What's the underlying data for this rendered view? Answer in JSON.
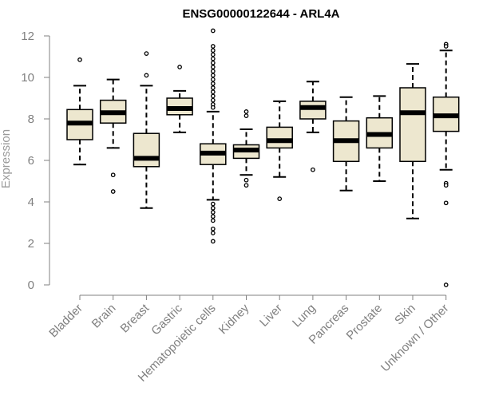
{
  "chart_data": {
    "type": "boxplot",
    "title": "ENSG00000122644 - ARL4A",
    "xlabel": "",
    "ylabel": "Expression",
    "ylim": [
      0,
      12
    ],
    "yticks": [
      0,
      2,
      4,
      6,
      8,
      10,
      12
    ],
    "grid": false,
    "colors": {
      "box_fill": "#ede7cf",
      "stroke": "#000000",
      "axis": "#808080"
    },
    "categories": [
      "Bladder",
      "Brain",
      "Breast",
      "Gastric",
      "Hematopoietic cells",
      "Kidney",
      "Liver",
      "Lung",
      "Pancreas",
      "Prostate",
      "Skin",
      "Unknown / Other"
    ],
    "boxes": [
      {
        "category": "Bladder",
        "whisker_low": 5.8,
        "q1": 7.0,
        "median": 7.8,
        "q3": 8.45,
        "whisker_high": 9.6,
        "outliers": [
          10.85
        ]
      },
      {
        "category": "Brain",
        "whisker_low": 6.6,
        "q1": 7.8,
        "median": 8.3,
        "q3": 8.9,
        "whisker_high": 9.9,
        "outliers": [
          5.3,
          4.5
        ]
      },
      {
        "category": "Breast",
        "whisker_low": 3.7,
        "q1": 5.7,
        "median": 6.1,
        "q3": 7.3,
        "whisker_high": 9.6,
        "outliers": [
          10.1,
          11.15
        ]
      },
      {
        "category": "Gastric",
        "whisker_low": 7.35,
        "q1": 8.2,
        "median": 8.5,
        "q3": 9.0,
        "whisker_high": 9.35,
        "outliers": [
          10.5
        ]
      },
      {
        "category": "Hematopoietic cells",
        "whisker_low": 4.1,
        "q1": 5.8,
        "median": 6.35,
        "q3": 6.8,
        "whisker_high": 8.35,
        "outliers": [
          12.25,
          11.5,
          11.3,
          11.1,
          10.9,
          10.7,
          10.5,
          10.3,
          10.1,
          9.9,
          9.7,
          9.5,
          9.3,
          9.1,
          8.9,
          8.7,
          8.55,
          3.9,
          3.7,
          3.5,
          3.3,
          3.1,
          2.7,
          2.5,
          2.1
        ]
      },
      {
        "category": "Kidney",
        "whisker_low": 5.3,
        "q1": 6.1,
        "median": 6.5,
        "q3": 6.75,
        "whisker_high": 7.5,
        "outliers": [
          8.35,
          8.15,
          5.05,
          4.8
        ]
      },
      {
        "category": "Liver",
        "whisker_low": 5.2,
        "q1": 6.6,
        "median": 6.95,
        "q3": 7.6,
        "whisker_high": 8.85,
        "outliers": [
          4.15
        ]
      },
      {
        "category": "Lung",
        "whisker_low": 7.35,
        "q1": 8.0,
        "median": 8.55,
        "q3": 8.85,
        "whisker_high": 9.8,
        "outliers": [
          5.55
        ]
      },
      {
        "category": "Pancreas",
        "whisker_low": 4.55,
        "q1": 5.95,
        "median": 6.95,
        "q3": 7.9,
        "whisker_high": 9.05,
        "outliers": []
      },
      {
        "category": "Prostate",
        "whisker_low": 5.0,
        "q1": 6.6,
        "median": 7.25,
        "q3": 8.05,
        "whisker_high": 9.1,
        "outliers": []
      },
      {
        "category": "Skin",
        "whisker_low": 3.2,
        "q1": 5.95,
        "median": 8.3,
        "q3": 9.5,
        "whisker_high": 10.65,
        "outliers": []
      },
      {
        "category": "Unknown / Other",
        "whisker_low": 5.55,
        "q1": 7.4,
        "median": 8.15,
        "q3": 9.05,
        "whisker_high": 11.3,
        "outliers": [
          11.6,
          11.5,
          4.9,
          4.8,
          3.95,
          0.0
        ]
      }
    ]
  }
}
